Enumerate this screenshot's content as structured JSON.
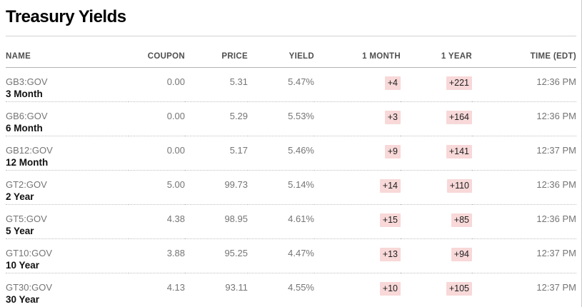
{
  "page": {
    "title": "Treasury Yields"
  },
  "table": {
    "headers": {
      "name": "NAME",
      "coupon": "COUPON",
      "price": "PRICE",
      "yield": "YIELD",
      "one_month": "1 MONTH",
      "one_year": "1 YEAR",
      "time": "TIME (EDT)"
    },
    "rows": [
      {
        "ticker": "GB3:GOV",
        "tenor": "3 Month",
        "coupon": "0.00",
        "price": "5.31",
        "yield": "5.47%",
        "one_month": "+4",
        "one_year": "+221",
        "time": "12:36 PM"
      },
      {
        "ticker": "GB6:GOV",
        "tenor": "6 Month",
        "coupon": "0.00",
        "price": "5.29",
        "yield": "5.53%",
        "one_month": "+3",
        "one_year": "+164",
        "time": "12:36 PM"
      },
      {
        "ticker": "GB12:GOV",
        "tenor": "12 Month",
        "coupon": "0.00",
        "price": "5.17",
        "yield": "5.46%",
        "one_month": "+9",
        "one_year": "+141",
        "time": "12:37 PM"
      },
      {
        "ticker": "GT2:GOV",
        "tenor": "2 Year",
        "coupon": "5.00",
        "price": "99.73",
        "yield": "5.14%",
        "one_month": "+14",
        "one_year": "+110",
        "time": "12:36 PM"
      },
      {
        "ticker": "GT5:GOV",
        "tenor": "5 Year",
        "coupon": "4.38",
        "price": "98.95",
        "yield": "4.61%",
        "one_month": "+15",
        "one_year": "+85",
        "time": "12:36 PM"
      },
      {
        "ticker": "GT10:GOV",
        "tenor": "10 Year",
        "coupon": "3.88",
        "price": "95.25",
        "yield": "4.47%",
        "one_month": "+13",
        "one_year": "+94",
        "time": "12:37 PM"
      },
      {
        "ticker": "GT30:GOV",
        "tenor": "30 Year",
        "coupon": "4.13",
        "price": "93.11",
        "yield": "4.55%",
        "one_month": "+10",
        "one_year": "+105",
        "time": "12:37 PM"
      }
    ]
  },
  "colors": {
    "badge_background": "#f8d8d8",
    "badge_text": "#1f1f1f",
    "muted_text": "#757575",
    "header_text": "#4f4f4f"
  }
}
